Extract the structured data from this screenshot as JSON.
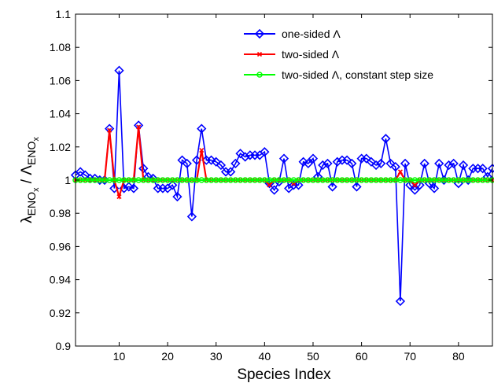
{
  "chart_data": {
    "type": "line",
    "xlabel": "Species Index",
    "ylabel_main": "λ",
    "ylabel_sub1": "ENO",
    "ylabel_subsub1": "x",
    "ylabel_sep": " / ",
    "ylabel_main2": "Λ",
    "ylabel_sub2": "ENO",
    "ylabel_subsub2": "x",
    "xlim": [
      1,
      87
    ],
    "ylim": [
      0.9,
      1.1
    ],
    "xticks": [
      10,
      20,
      30,
      40,
      50,
      60,
      70,
      80
    ],
    "yticks": [
      0.9,
      0.92,
      0.94,
      0.96,
      0.98,
      1,
      1.02,
      1.04,
      1.06,
      1.08,
      1.1
    ],
    "ytick_labels": [
      "0.9",
      "0.92",
      "0.94",
      "0.96",
      "0.98",
      "1",
      "1.02",
      "1.04",
      "1.06",
      "1.08",
      "1.1"
    ],
    "grid": false,
    "legend_position": "top-right",
    "x": [
      1,
      2,
      3,
      4,
      5,
      6,
      7,
      8,
      9,
      10,
      11,
      12,
      13,
      14,
      15,
      16,
      17,
      18,
      19,
      20,
      21,
      22,
      23,
      24,
      25,
      26,
      27,
      28,
      29,
      30,
      31,
      32,
      33,
      34,
      35,
      36,
      37,
      38,
      39,
      40,
      41,
      42,
      43,
      44,
      45,
      46,
      47,
      48,
      49,
      50,
      51,
      52,
      53,
      54,
      55,
      56,
      57,
      58,
      59,
      60,
      61,
      62,
      63,
      64,
      65,
      66,
      67,
      68,
      69,
      70,
      71,
      72,
      73,
      74,
      75,
      76,
      77,
      78,
      79,
      80,
      81,
      82,
      83,
      84,
      85,
      86,
      87
    ],
    "series": [
      {
        "name": "one-sided Λ",
        "color": "#0000ff",
        "marker": "diamond",
        "values": [
          1.003,
          1.005,
          1.003,
          1.001,
          1.001,
          1.0,
          1.0,
          1.031,
          0.995,
          1.066,
          0.995,
          0.996,
          0.995,
          1.033,
          1.007,
          1.002,
          1.001,
          0.995,
          0.995,
          0.995,
          0.997,
          0.99,
          1.012,
          1.01,
          0.978,
          1.012,
          1.031,
          1.012,
          1.012,
          1.011,
          1.009,
          1.005,
          1.005,
          1.01,
          1.016,
          1.014,
          1.015,
          1.015,
          1.015,
          1.017,
          0.998,
          0.994,
          0.999,
          1.013,
          0.995,
          0.997,
          0.997,
          1.011,
          1.01,
          1.013,
          1.002,
          1.009,
          1.01,
          0.996,
          1.011,
          1.012,
          1.012,
          1.01,
          0.996,
          1.013,
          1.013,
          1.011,
          1.009,
          1.01,
          1.025,
          1.01,
          1.008,
          0.927,
          1.01,
          0.997,
          0.994,
          0.997,
          1.01,
          0.998,
          0.995,
          1.01,
          1.0,
          1.009,
          1.01,
          0.998,
          1.009,
          1.0,
          1.007,
          1.007,
          1.007,
          1.002,
          1.007
        ]
      },
      {
        "name": "two-sided Λ",
        "color": "#ff0000",
        "marker": "x",
        "values": [
          1.0,
          1.0,
          1.0,
          1.0,
          1.0,
          1.0,
          1.0,
          1.03,
          1.0,
          0.99,
          1.0,
          1.0,
          1.0,
          1.032,
          1.0,
          1.0,
          1.0,
          1.0,
          1.0,
          1.0,
          1.0,
          1.0,
          1.0,
          1.0,
          1.0,
          1.0,
          1.018,
          1.0,
          1.0,
          1.0,
          1.0,
          1.0,
          1.0,
          1.0,
          1.0,
          1.0,
          1.0,
          1.0,
          1.0,
          1.0,
          0.997,
          1.0,
          1.0,
          1.0,
          1.0,
          0.998,
          1.0,
          1.0,
          1.0,
          1.0,
          1.0,
          1.0,
          1.0,
          1.0,
          1.0,
          1.0,
          1.0,
          1.0,
          1.0,
          1.0,
          1.0,
          1.0,
          1.0,
          1.0,
          1.0,
          1.0,
          1.0,
          1.005,
          1.0,
          1.0,
          0.997,
          1.0,
          1.0,
          1.0,
          1.0,
          1.0,
          1.0,
          1.0,
          1.0,
          1.0,
          1.0,
          1.0,
          1.0,
          1.0,
          1.0,
          1.0,
          1.0
        ]
      },
      {
        "name": "two-sided Λ, constant step size",
        "color": "#00ff00",
        "marker": "circle",
        "values": [
          1,
          1,
          1,
          1,
          1,
          1,
          1,
          1,
          1,
          1,
          1,
          1,
          1,
          1,
          1,
          1,
          1,
          1,
          1,
          1,
          1,
          1,
          1,
          1,
          1,
          1,
          1,
          1,
          1,
          1,
          1,
          1,
          1,
          1,
          1,
          1,
          1,
          1,
          1,
          1,
          1,
          1,
          1,
          1,
          1,
          1,
          1,
          1,
          1,
          1,
          1,
          1,
          1,
          1,
          1,
          1,
          1,
          1,
          1,
          1,
          1,
          1,
          1,
          1,
          1,
          1,
          1,
          1,
          1,
          1,
          1,
          1,
          1,
          1,
          1,
          1,
          1,
          1,
          1,
          1,
          1,
          1,
          1,
          1,
          1,
          1,
          1
        ]
      }
    ]
  }
}
